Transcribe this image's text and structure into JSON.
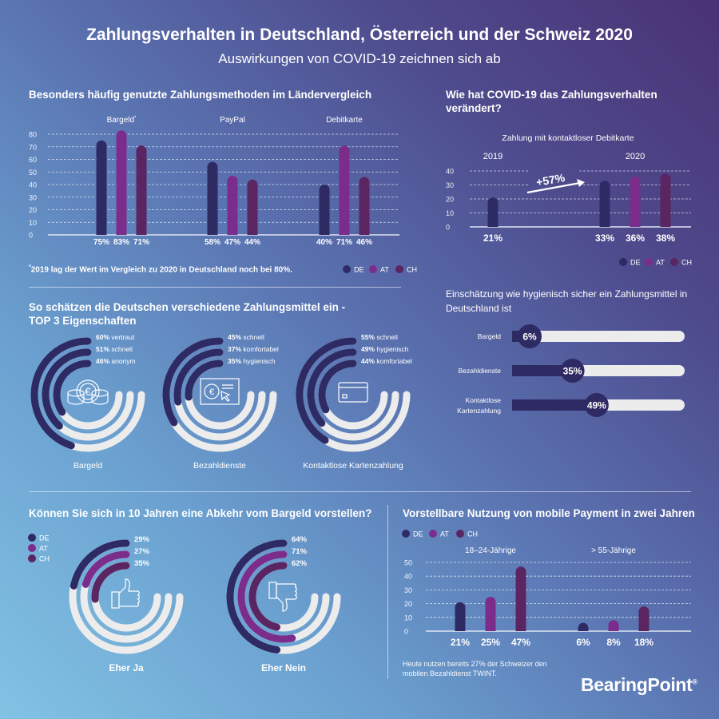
{
  "header": {
    "title": "Zahlungsverhalten in Deutschland, Österreich und der Schweiz  2020",
    "subtitle": "Auswirkungen von COVID-19 zeichnen sich ab"
  },
  "colors": {
    "DE": "#2e2a64",
    "AT": "#7c2d8c",
    "CH": "#5a2561",
    "track": "#ececec"
  },
  "legend": [
    "DE",
    "AT",
    "CH"
  ],
  "sections": {
    "methods": {
      "heading": "Besonders häufig genutzte Zahlungsmethoden im Ländervergleich",
      "footnote_marker": "*",
      "footnote": "2019 lag der Wert im Vergleich zu 2020 in Deutschland noch bei 80%."
    },
    "covid": {
      "heading_1": "Wie hat COVID-19 das Zahlungsverhalten",
      "heading_2": "verändert?"
    },
    "hygiene": {
      "heading_1": "Einschätzung wie hygienisch sicher ein Zahlungsmittel in",
      "heading_2": "Deutschland ist"
    },
    "properties": {
      "heading_1": "So schätzen die Deutschen verschiedene Zahlungsmittel ein -",
      "heading_2": "TOP 3 Eigenschaften"
    },
    "cashless": {
      "heading": "Können Sie sich in 10 Jahren eine Abkehr vom Bargeld vorstellen?"
    },
    "mobile": {
      "heading": "Vorstellbare Nutzung von mobile Payment in zwei Jahren",
      "footnote_1": "Heute nutzen bereits 27% der Schweizer den",
      "footnote_2": "mobilen Bezahldienst TWINT."
    }
  },
  "logo": {
    "text": "BearingPoint",
    "mark": "®"
  },
  "chart_data": [
    {
      "id": "methods",
      "type": "bar",
      "series": [
        "DE",
        "AT",
        "CH"
      ],
      "unit": "%",
      "yticks": [
        0,
        10,
        20,
        30,
        40,
        50,
        60,
        70,
        80
      ],
      "ylim": [
        0,
        80
      ],
      "grid": true,
      "legend": "bottom-right",
      "groups": [
        {
          "label": "Bargeld",
          "marker": "*",
          "values": [
            75,
            83,
            71
          ]
        },
        {
          "label": "PayPal",
          "values": [
            58,
            47,
            44
          ]
        },
        {
          "label": "Debitkarte",
          "values": [
            40,
            71,
            46
          ]
        }
      ]
    },
    {
      "id": "contactless",
      "type": "bar",
      "title": "Zahlung mit kontaktloser Debitkarte",
      "series": [
        "DE",
        "AT",
        "CH"
      ],
      "unit": "%",
      "yticks": [
        0,
        10,
        20,
        30,
        40
      ],
      "ylim": [
        0,
        40
      ],
      "grid": true,
      "legend": "bottom-right",
      "annotation": "+57%",
      "groups": [
        {
          "label": "2019",
          "values": [
            21,
            null,
            null
          ]
        },
        {
          "label": "2020",
          "values": [
            33,
            36,
            38
          ]
        }
      ]
    },
    {
      "id": "properties",
      "type": "radial-bar",
      "max": 100,
      "unit": "%",
      "charts": [
        {
          "label": "Bargeld",
          "icon": "coins-icon",
          "items": [
            {
              "value": 60,
              "label": "vertraut"
            },
            {
              "value": 51,
              "label": "schnell"
            },
            {
              "value": 46,
              "label": "anonym"
            }
          ]
        },
        {
          "label": "Bezahldienste",
          "icon": "online-payment-icon",
          "items": [
            {
              "value": 45,
              "label": "schnell"
            },
            {
              "value": 37,
              "label": "komfortabel"
            },
            {
              "value": 35,
              "label": "hygienisch"
            }
          ]
        },
        {
          "label": "Kontaktlose Kartenzahlung",
          "icon": "credit-card-icon",
          "items": [
            {
              "value": 55,
              "label": "schnell"
            },
            {
              "value": 49,
              "label": "hygienisch"
            },
            {
              "value": 44,
              "label": "komfortabel"
            }
          ]
        }
      ]
    },
    {
      "id": "hygiene",
      "type": "progress-bar",
      "unit": "%",
      "max": 100,
      "items": [
        {
          "label_1": "Bargeld",
          "value": 6
        },
        {
          "label_1": "Bezahldienste",
          "value": 35
        },
        {
          "label_1": "Kontaktlose",
          "label_2": "Kartenzahlung",
          "value": 49
        }
      ]
    },
    {
      "id": "cashless",
      "type": "radial-bar",
      "max": 100,
      "unit": "%",
      "series": [
        "DE",
        "AT",
        "CH"
      ],
      "legend": "top-left",
      "charts": [
        {
          "label": "Eher Ja",
          "icon": "thumbs-up-icon",
          "values": [
            29,
            27,
            35
          ]
        },
        {
          "label": "Eher Nein",
          "icon": "thumbs-down-icon",
          "values": [
            64,
            71,
            62
          ]
        }
      ]
    },
    {
      "id": "mobile",
      "type": "bar",
      "series": [
        "DE",
        "AT",
        "CH"
      ],
      "unit": "%",
      "yticks": [
        0,
        10,
        20,
        30,
        40,
        50
      ],
      "ylim": [
        0,
        50
      ],
      "grid": true,
      "legend": "top-left",
      "groups": [
        {
          "label": "18–24-Jährige",
          "values": [
            21,
            25,
            47
          ]
        },
        {
          "label": "> 55-Jährige",
          "values": [
            6,
            8,
            18
          ]
        }
      ]
    }
  ]
}
